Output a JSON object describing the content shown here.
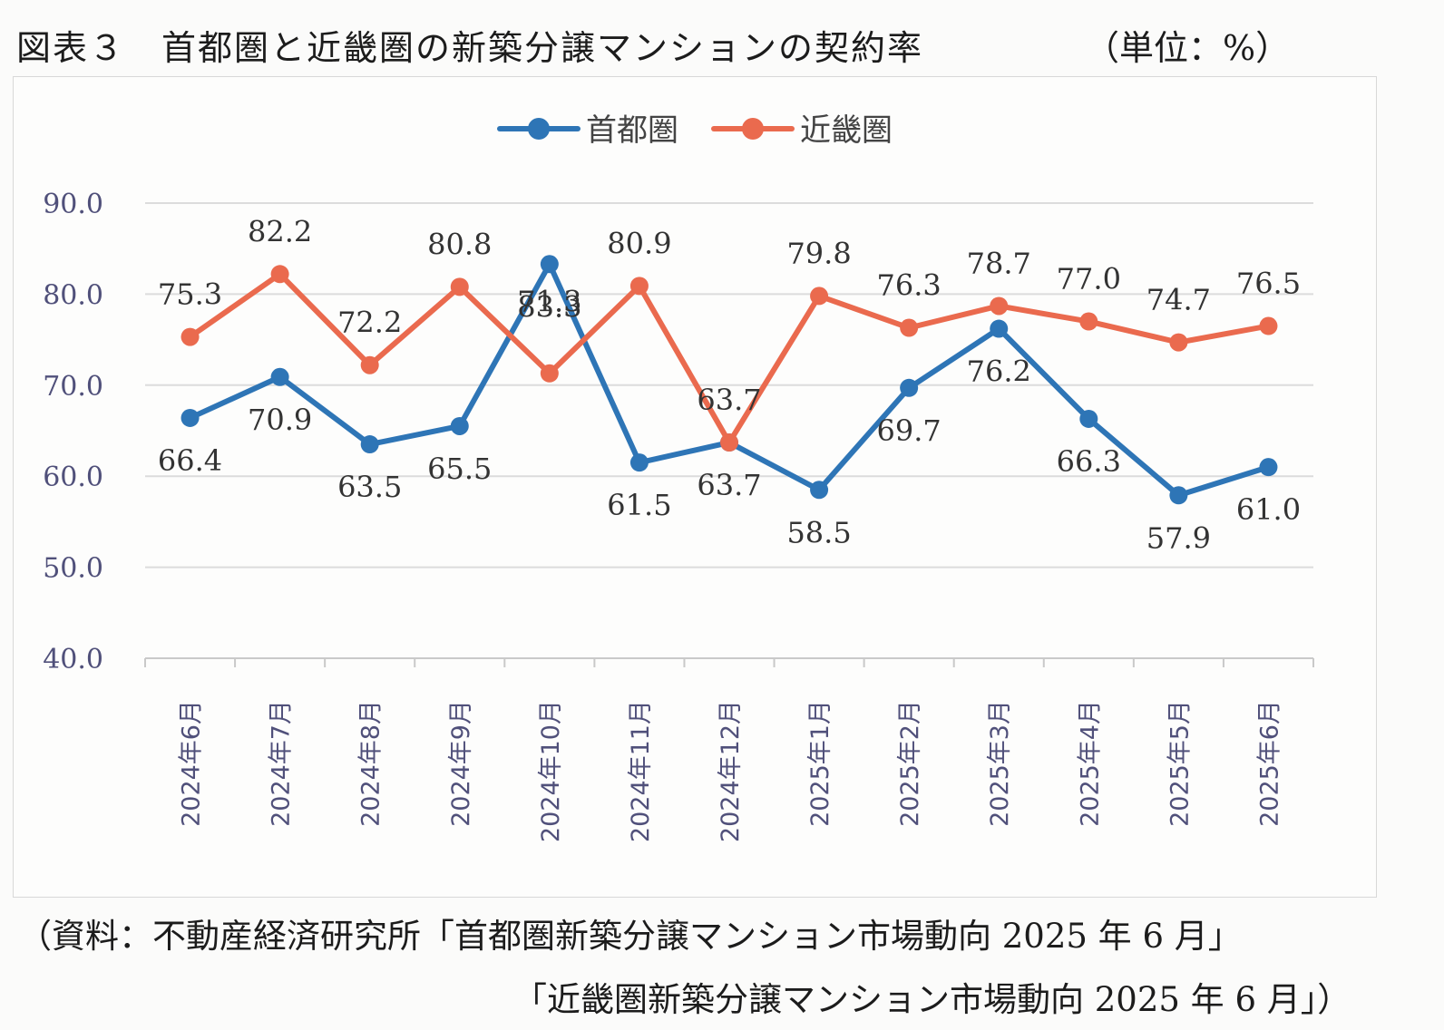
{
  "header": {
    "title": "図表３　首都圏と近畿圏の新築分譲マンションの契約率",
    "unit": "（単位：%）"
  },
  "source": {
    "line1": "（資料：不動産経済研究所「首都圏新築分譲マンション市場動向 2025 年 6 月」",
    "line2": "「近畿圏新築分譲マンション市場動向 2025 年 6 月」）"
  },
  "chart_data": {
    "type": "line",
    "categories": [
      "2024年6月",
      "2024年7月",
      "2024年8月",
      "2024年9月",
      "2024年10月",
      "2024年11月",
      "2024年12月",
      "2025年1月",
      "2025年2月",
      "2025年3月",
      "2025年4月",
      "2025年5月",
      "2025年6月"
    ],
    "series": [
      {
        "name": "首都圏",
        "color": "#2e75b6",
        "values": [
          66.4,
          70.9,
          63.5,
          65.5,
          83.3,
          61.5,
          63.7,
          58.5,
          69.7,
          76.2,
          66.3,
          57.9,
          61.0
        ]
      },
      {
        "name": "近畿圏",
        "color": "#ea6a4e",
        "values": [
          75.3,
          82.2,
          72.2,
          80.8,
          71.3,
          80.9,
          63.7,
          79.8,
          76.3,
          78.7,
          77.0,
          74.7,
          76.5
        ]
      }
    ],
    "ylim": [
      40,
      90
    ],
    "yticks": [
      "90.0",
      "80.0",
      "70.0",
      "60.0",
      "50.0",
      "40.0"
    ],
    "grid": true,
    "legend": "top-center",
    "xlabel": "",
    "ylabel": ""
  }
}
